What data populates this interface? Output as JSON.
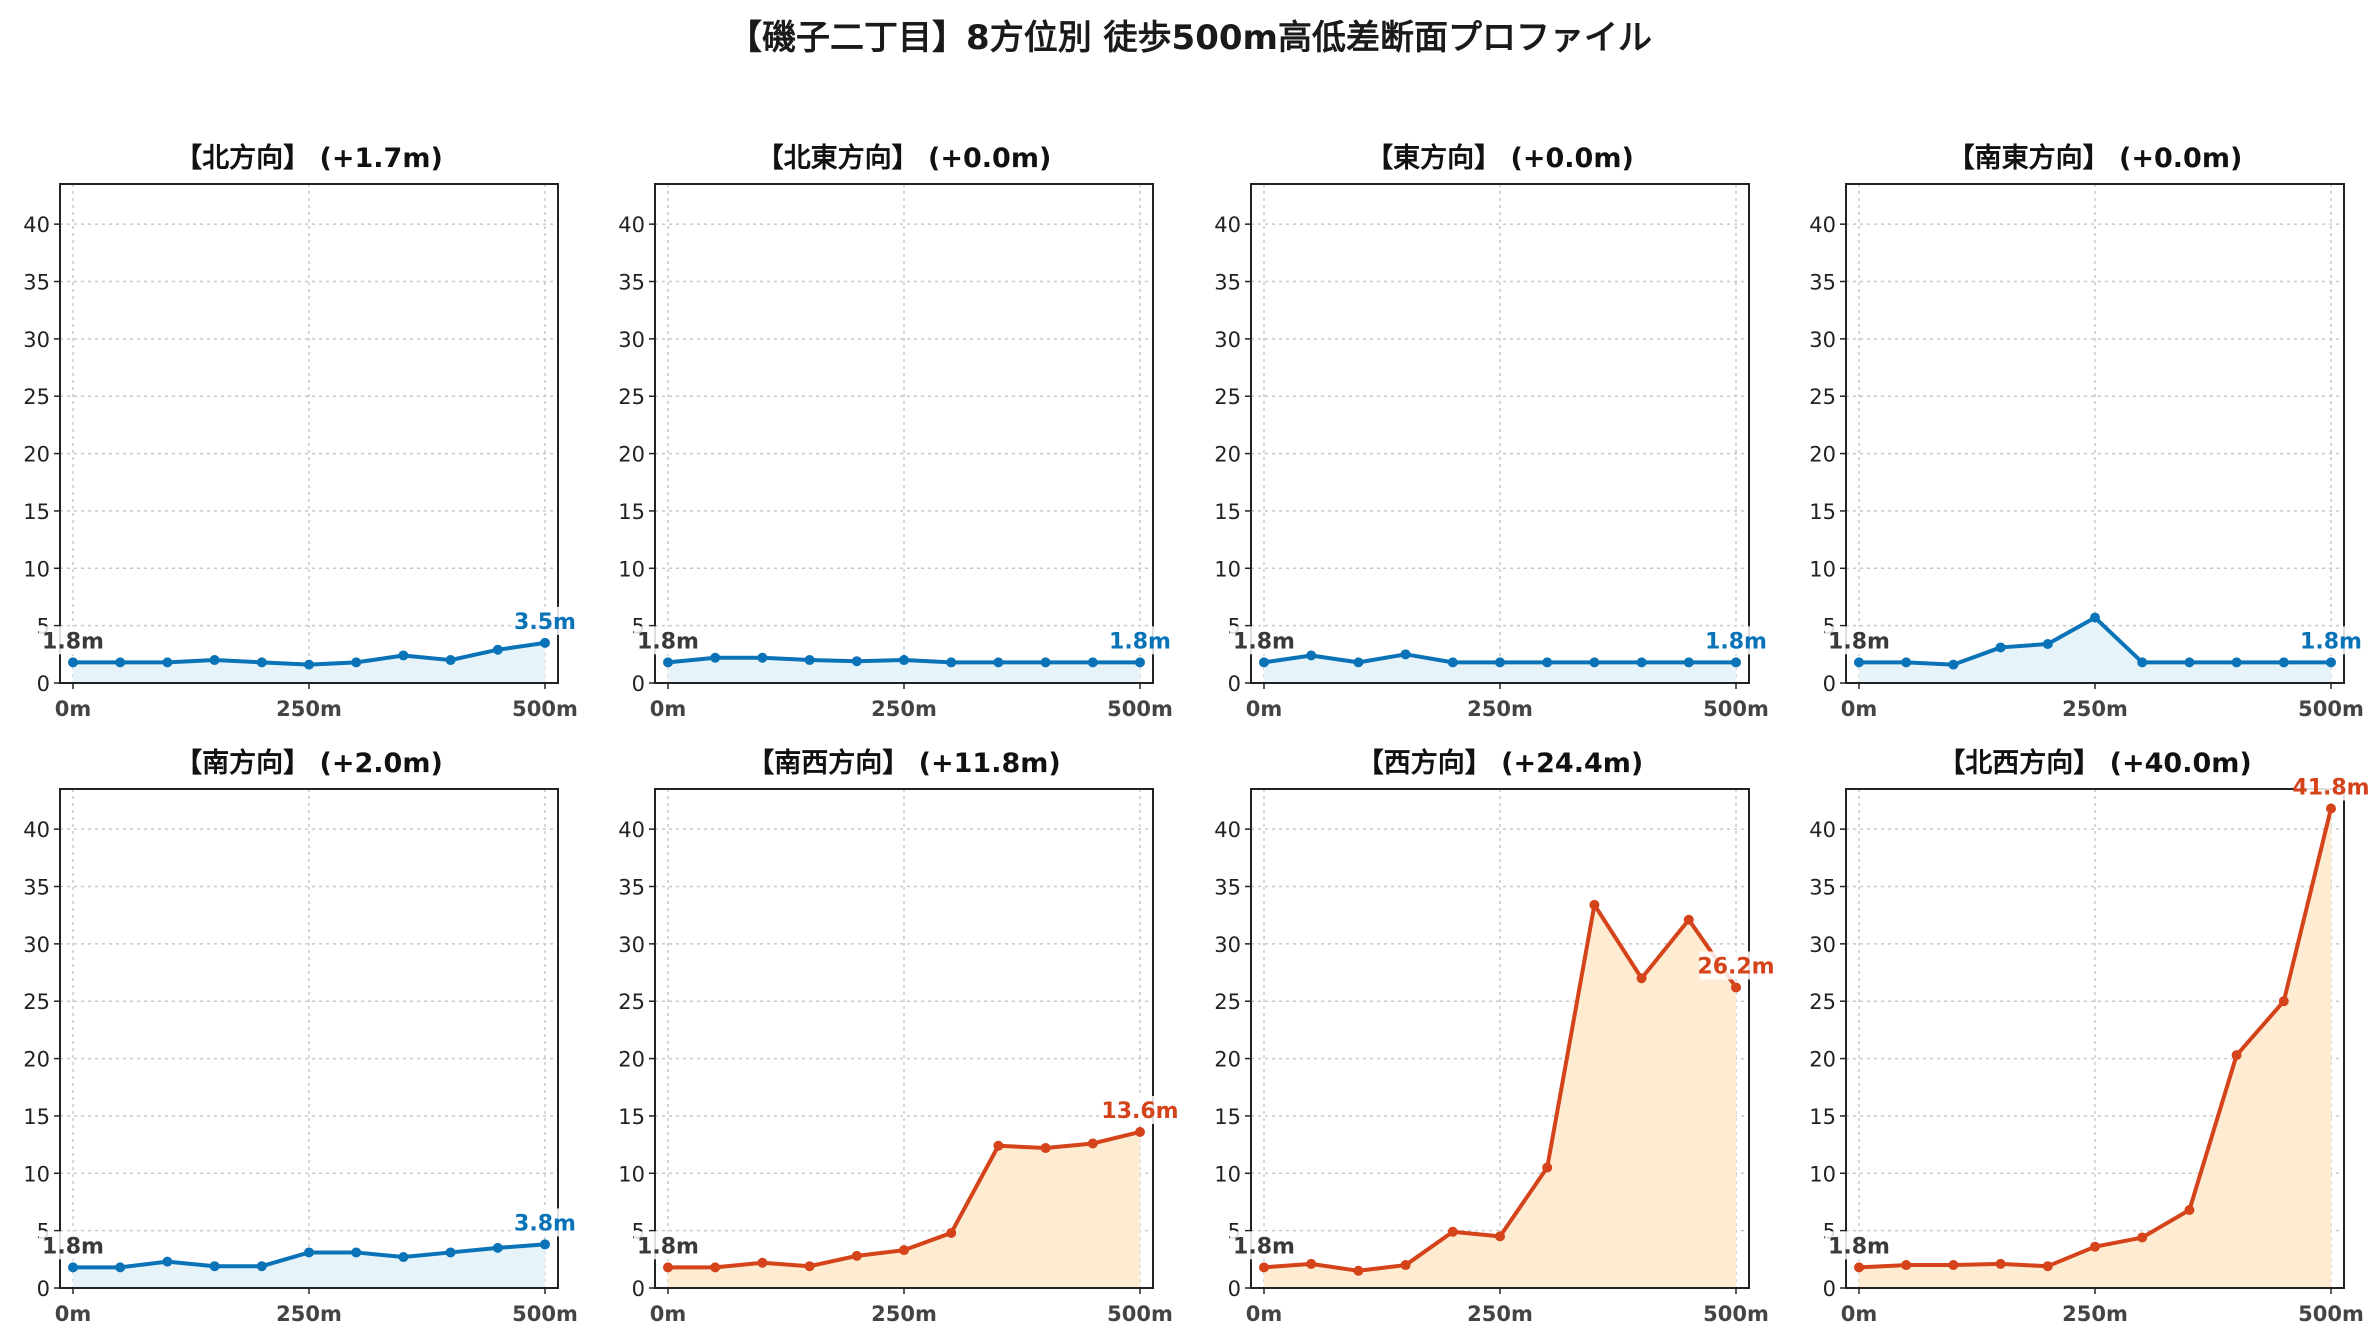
{
  "figure": {
    "title": "【磯子二丁目】8方位別 徒歩500m高低差断面プロファイル"
  },
  "colors": {
    "rise": "#0a73b7",
    "rise_fill": "#e6f4fa",
    "drop": "#d5431a",
    "drop_fill": "#fdebd2",
    "start_label": "#3a3a3a"
  },
  "chart_data": [
    {
      "type": "area",
      "title": "【北方向】 (+1.7m)",
      "x": [
        0,
        50,
        100,
        150,
        200,
        250,
        300,
        350,
        400,
        450,
        500
      ],
      "y": [
        1.8,
        1.8,
        1.8,
        2.0,
        1.8,
        1.6,
        1.8,
        2.4,
        2.0,
        2.9,
        3.5
      ],
      "xticks": [
        "0m",
        "250m",
        "500m"
      ],
      "ylim": [
        0,
        43.5
      ],
      "yticks": [
        0,
        5,
        10,
        15,
        20,
        25,
        30,
        35,
        40
      ],
      "start_label": "1.8m",
      "end_label": "3.5m",
      "style": "rise",
      "grid": true
    },
    {
      "type": "area",
      "title": "【北東方向】 (+0.0m)",
      "x": [
        0,
        50,
        100,
        150,
        200,
        250,
        300,
        350,
        400,
        450,
        500
      ],
      "y": [
        1.8,
        2.2,
        2.2,
        2.0,
        1.9,
        2.0,
        1.8,
        1.8,
        1.8,
        1.8,
        1.8
      ],
      "xticks": [
        "0m",
        "250m",
        "500m"
      ],
      "ylim": [
        0,
        43.5
      ],
      "yticks": [
        0,
        5,
        10,
        15,
        20,
        25,
        30,
        35,
        40
      ],
      "start_label": "1.8m",
      "end_label": "1.8m",
      "style": "rise",
      "grid": true
    },
    {
      "type": "area",
      "title": "【東方向】 (+0.0m)",
      "x": [
        0,
        50,
        100,
        150,
        200,
        250,
        300,
        350,
        400,
        450,
        500
      ],
      "y": [
        1.8,
        2.4,
        1.8,
        2.5,
        1.8,
        1.8,
        1.8,
        1.8,
        1.8,
        1.8,
        1.8
      ],
      "xticks": [
        "0m",
        "250m",
        "500m"
      ],
      "ylim": [
        0,
        43.5
      ],
      "yticks": [
        0,
        5,
        10,
        15,
        20,
        25,
        30,
        35,
        40
      ],
      "start_label": "1.8m",
      "end_label": "1.8m",
      "style": "rise",
      "grid": true
    },
    {
      "type": "area",
      "title": "【南東方向】 (+0.0m)",
      "x": [
        0,
        50,
        100,
        150,
        200,
        250,
        300,
        350,
        400,
        450,
        500
      ],
      "y": [
        1.8,
        1.8,
        1.6,
        3.1,
        3.4,
        5.7,
        1.8,
        1.8,
        1.8,
        1.8,
        1.8
      ],
      "xticks": [
        "0m",
        "250m",
        "500m"
      ],
      "ylim": [
        0,
        43.5
      ],
      "yticks": [
        0,
        5,
        10,
        15,
        20,
        25,
        30,
        35,
        40
      ],
      "start_label": "1.8m",
      "end_label": "1.8m",
      "style": "rise",
      "grid": true
    },
    {
      "type": "area",
      "title": "【南方向】 (+2.0m)",
      "x": [
        0,
        50,
        100,
        150,
        200,
        250,
        300,
        350,
        400,
        450,
        500
      ],
      "y": [
        1.8,
        1.8,
        2.3,
        1.9,
        1.9,
        3.1,
        3.1,
        2.7,
        3.1,
        3.5,
        3.8
      ],
      "xticks": [
        "0m",
        "250m",
        "500m"
      ],
      "ylim": [
        0,
        43.5
      ],
      "yticks": [
        0,
        5,
        10,
        15,
        20,
        25,
        30,
        35,
        40
      ],
      "start_label": "1.8m",
      "end_label": "3.8m",
      "style": "rise",
      "grid": true
    },
    {
      "type": "area",
      "title": "【南西方向】 (+11.8m)",
      "x": [
        0,
        50,
        100,
        150,
        200,
        250,
        300,
        350,
        400,
        450,
        500
      ],
      "y": [
        1.8,
        1.8,
        2.2,
        1.9,
        2.8,
        3.3,
        4.8,
        12.4,
        12.2,
        12.6,
        13.6
      ],
      "xticks": [
        "0m",
        "250m",
        "500m"
      ],
      "ylim": [
        0,
        43.5
      ],
      "yticks": [
        0,
        5,
        10,
        15,
        20,
        25,
        30,
        35,
        40
      ],
      "start_label": "1.8m",
      "end_label": "13.6m",
      "style": "drop",
      "grid": true
    },
    {
      "type": "area",
      "title": "【西方向】 (+24.4m)",
      "x": [
        0,
        50,
        100,
        150,
        200,
        250,
        300,
        350,
        400,
        450,
        500
      ],
      "y": [
        1.8,
        2.1,
        1.5,
        2.0,
        4.9,
        4.5,
        10.5,
        33.4,
        27.0,
        32.1,
        26.2
      ],
      "xticks": [
        "0m",
        "250m",
        "500m"
      ],
      "ylim": [
        0,
        43.5
      ],
      "yticks": [
        0,
        5,
        10,
        15,
        20,
        25,
        30,
        35,
        40
      ],
      "start_label": "1.8m",
      "end_label": "26.2m",
      "style": "drop",
      "grid": true
    },
    {
      "type": "area",
      "title": "【北西方向】 (+40.0m)",
      "x": [
        0,
        50,
        100,
        150,
        200,
        250,
        300,
        350,
        400,
        450,
        500
      ],
      "y": [
        1.8,
        2.0,
        2.0,
        2.1,
        1.9,
        3.6,
        4.4,
        6.8,
        20.3,
        25.0,
        41.8
      ],
      "xticks": [
        "0m",
        "250m",
        "500m"
      ],
      "ylim": [
        0,
        43.5
      ],
      "yticks": [
        0,
        5,
        10,
        15,
        20,
        25,
        30,
        35,
        40
      ],
      "start_label": "1.8m",
      "end_label": "41.8m",
      "style": "drop",
      "grid": true
    }
  ]
}
